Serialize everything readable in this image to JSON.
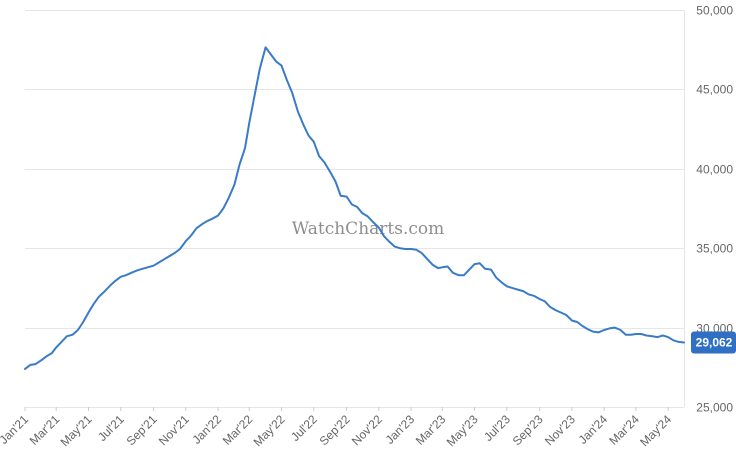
{
  "watermark": "WatchCharts.com",
  "colors": {
    "line": "#3a7bc8",
    "badge": "#2f6fc4",
    "grid": "#e6e6e6",
    "axis_text": "#666666"
  },
  "current_value_label": "29,062",
  "chart_data": {
    "type": "line",
    "title": "",
    "xlabel": "",
    "ylabel": "",
    "ylim": [
      25000,
      50000
    ],
    "y_ticks": [
      25000,
      30000,
      35000,
      40000,
      45000,
      50000
    ],
    "y_tick_labels": [
      "25,000",
      "30,000",
      "35,000",
      "40,000",
      "45,000",
      "50,000"
    ],
    "y_axis_position": "right",
    "grid": "horizontal",
    "x_range": [
      "2021-01-01",
      "2024-05-31"
    ],
    "x_ticks": [
      "2021-01-01",
      "2021-03-01",
      "2021-05-01",
      "2021-07-01",
      "2021-09-01",
      "2021-11-01",
      "2022-01-01",
      "2022-03-01",
      "2022-05-01",
      "2022-07-01",
      "2022-09-01",
      "2022-11-01",
      "2023-01-01",
      "2023-03-01",
      "2023-05-01",
      "2023-07-01",
      "2023-09-01",
      "2023-11-01",
      "2024-01-01",
      "2024-03-01",
      "2024-05-01"
    ],
    "x_tick_labels": [
      "Jan'21",
      "Mar'21",
      "May'21",
      "Jul'21",
      "Sep'21",
      "Nov'21",
      "Jan'22",
      "Mar'22",
      "May'22",
      "Jul'22",
      "Sep'22",
      "Nov'22",
      "Jan'23",
      "Mar'23",
      "May'23",
      "Jul'23",
      "Sep'23",
      "Nov'23",
      "Jan'24",
      "Mar'24",
      "May'24"
    ],
    "series": [
      {
        "x": [
          "2021-01-01",
          "2021-01-11",
          "2021-01-21",
          "2021-02-01",
          "2021-02-11",
          "2021-02-21",
          "2021-03-01",
          "2021-03-11",
          "2021-03-21",
          "2021-04-01",
          "2021-04-11",
          "2021-04-21",
          "2021-05-01",
          "2021-05-11",
          "2021-05-21",
          "2021-06-01",
          "2021-06-11",
          "2021-06-21",
          "2021-07-01",
          "2021-07-11",
          "2021-07-21",
          "2021-08-01",
          "2021-08-11",
          "2021-08-21",
          "2021-09-01",
          "2021-09-11",
          "2021-09-21",
          "2021-10-01",
          "2021-10-11",
          "2021-10-21",
          "2021-11-01",
          "2021-11-11",
          "2021-11-21",
          "2021-12-01",
          "2021-12-11",
          "2021-12-21",
          "2022-01-01",
          "2022-01-11",
          "2022-01-21",
          "2022-02-01",
          "2022-02-11",
          "2022-02-21",
          "2022-03-01",
          "2022-03-11",
          "2022-03-21",
          "2022-04-01",
          "2022-04-11",
          "2022-04-21",
          "2022-05-01",
          "2022-05-11",
          "2022-05-21",
          "2022-06-01",
          "2022-06-11",
          "2022-06-21",
          "2022-07-01",
          "2022-07-11",
          "2022-07-21",
          "2022-08-01",
          "2022-08-11",
          "2022-08-21",
          "2022-09-01",
          "2022-09-11",
          "2022-09-21",
          "2022-10-01",
          "2022-10-11",
          "2022-10-21",
          "2022-11-01",
          "2022-11-11",
          "2022-11-21",
          "2022-12-01",
          "2022-12-11",
          "2022-12-21",
          "2023-01-01",
          "2023-01-11",
          "2023-01-21",
          "2023-02-01",
          "2023-02-11",
          "2023-02-21",
          "2023-03-01",
          "2023-03-11",
          "2023-03-21",
          "2023-04-01",
          "2023-04-11",
          "2023-04-21",
          "2023-05-01",
          "2023-05-11",
          "2023-05-21",
          "2023-06-01",
          "2023-06-11",
          "2023-06-21",
          "2023-07-01",
          "2023-07-11",
          "2023-07-21",
          "2023-08-01",
          "2023-08-11",
          "2023-08-21",
          "2023-09-01",
          "2023-09-11",
          "2023-09-21",
          "2023-10-01",
          "2023-10-11",
          "2023-10-21",
          "2023-11-01",
          "2023-11-11",
          "2023-11-21",
          "2023-12-01",
          "2023-12-11",
          "2023-12-21",
          "2024-01-01",
          "2024-01-11",
          "2024-01-21",
          "2024-02-01",
          "2024-02-11",
          "2024-02-21",
          "2024-03-01",
          "2024-03-11",
          "2024-03-21",
          "2024-04-01",
          "2024-04-11",
          "2024-04-21",
          "2024-05-01",
          "2024-05-11",
          "2024-05-21",
          "2024-05-31"
        ],
        "values": [
          27400,
          27650,
          27700,
          27950,
          28200,
          28400,
          28750,
          29100,
          29450,
          29550,
          29850,
          30350,
          30950,
          31500,
          31950,
          32300,
          32650,
          32950,
          33200,
          33300,
          33450,
          33600,
          33700,
          33800,
          33900,
          34100,
          34300,
          34500,
          34700,
          34950,
          35450,
          35800,
          36250,
          36500,
          36700,
          36850,
          37050,
          37500,
          38150,
          39000,
          40300,
          41300,
          42900,
          44600,
          46300,
          47650,
          47200,
          46750,
          46500,
          45600,
          44800,
          43600,
          42800,
          42100,
          41700,
          40800,
          40400,
          39800,
          39200,
          38300,
          38250,
          37750,
          37600,
          37200,
          37000,
          36650,
          36300,
          35750,
          35400,
          35100,
          35000,
          34950,
          34950,
          34900,
          34700,
          34300,
          33950,
          33750,
          33800,
          33850,
          33450,
          33300,
          33300,
          33650,
          34000,
          34050,
          33700,
          33650,
          33150,
          32850,
          32600,
          32500,
          32400,
          32300,
          32100,
          32000,
          31800,
          31650,
          31300,
          31100,
          30950,
          30800,
          30450,
          30350,
          30100,
          29900,
          29750,
          29700,
          29850,
          29950,
          30000,
          29850,
          29550,
          29550,
          29600,
          29600,
          29500,
          29450,
          29400,
          29500,
          29400,
          29200,
          29100,
          29062
        ]
      }
    ]
  }
}
